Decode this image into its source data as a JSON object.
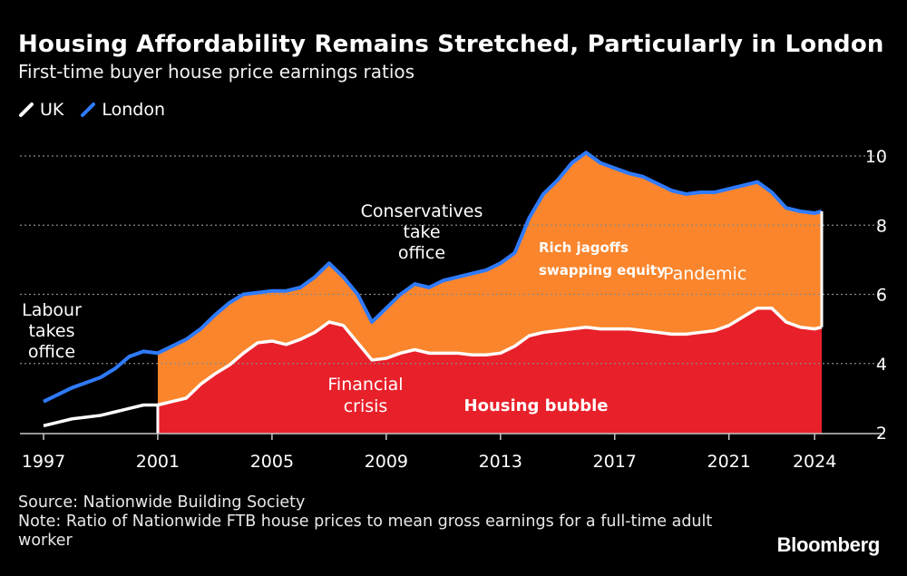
{
  "header": {
    "title": "Housing Affordability Remains Stretched, Particularly in London",
    "subtitle": "First-time buyer house price earnings ratios"
  },
  "legend": {
    "items": [
      {
        "label": "UK",
        "color": "#ffffff",
        "icon": "slash-line-icon"
      },
      {
        "label": "London",
        "color": "#2f7bff",
        "icon": "slash-line-icon"
      }
    ]
  },
  "colors": {
    "uk_fill": "#e8202a",
    "gap_fill": "#fa852c",
    "uk_line": "#ffffff",
    "london_line": "#2f7bff",
    "grid": "#8a8a8a"
  },
  "annotations": {
    "labour": [
      "Labour",
      "takes",
      "office"
    ],
    "conservatives": [
      "Conservatives",
      "take",
      "office"
    ],
    "financial_crisis": [
      "Financial",
      "crisis"
    ],
    "housing_bubble": "Housing bubble",
    "rich": [
      "Rich jagoffs",
      "swapping equity"
    ],
    "pandemic": "Pandemic"
  },
  "footer": {
    "source": "Source: Nationwide Building Society",
    "note": "Note: Ratio of Nationwide FTB house prices to mean gross earnings for a full-time adult worker"
  },
  "brand": "Bloomberg",
  "chart_data": {
    "type": "area",
    "title": "Housing Affordability Remains Stretched, Particularly in London",
    "subtitle": "First-time buyer house price earnings ratios",
    "xlabel": "",
    "ylabel": "",
    "xlim": [
      1997,
      2025.8
    ],
    "ylim": [
      1.8,
      10.4
    ],
    "x_ticks": [
      1997,
      2001,
      2005,
      2009,
      2013,
      2017,
      2021,
      2024
    ],
    "y_ticks": [
      2,
      4,
      6,
      8,
      10
    ],
    "grid": "horizontal dotted",
    "shade_start": 2001,
    "series": [
      {
        "name": "UK",
        "x": [
          1997,
          1997.5,
          1998,
          1998.5,
          1999,
          1999.5,
          2000,
          2000.5,
          2001,
          2001.5,
          2002,
          2002.5,
          2003,
          2003.5,
          2004,
          2004.5,
          2005,
          2005.5,
          2006,
          2006.5,
          2007,
          2007.5,
          2008,
          2008.5,
          2009,
          2009.5,
          2010,
          2010.5,
          2011,
          2011.5,
          2012,
          2012.5,
          2013,
          2013.5,
          2014,
          2014.5,
          2015,
          2015.5,
          2016,
          2016.5,
          2017,
          2017.5,
          2018,
          2018.5,
          2019,
          2019.5,
          2020,
          2020.5,
          2021,
          2021.5,
          2022,
          2022.5,
          2023,
          2023.5,
          2024,
          2024.25
        ],
        "values": [
          2.2,
          2.3,
          2.4,
          2.45,
          2.5,
          2.6,
          2.7,
          2.8,
          2.8,
          2.9,
          3.0,
          3.4,
          3.7,
          3.95,
          4.3,
          4.6,
          4.65,
          4.55,
          4.7,
          4.9,
          5.2,
          5.1,
          4.6,
          4.1,
          4.15,
          4.3,
          4.4,
          4.3,
          4.3,
          4.3,
          4.25,
          4.25,
          4.3,
          4.5,
          4.8,
          4.9,
          4.95,
          5.0,
          5.05,
          5.0,
          5.0,
          5.0,
          4.95,
          4.9,
          4.85,
          4.85,
          4.9,
          4.95,
          5.1,
          5.35,
          5.6,
          5.6,
          5.2,
          5.05,
          5.0,
          5.05
        ]
      },
      {
        "name": "London",
        "x": [
          1997,
          1997.5,
          1998,
          1998.5,
          1999,
          1999.5,
          2000,
          2000.5,
          2001,
          2001.5,
          2002,
          2002.5,
          2003,
          2003.5,
          2004,
          2004.5,
          2005,
          2005.5,
          2006,
          2006.5,
          2007,
          2007.5,
          2008,
          2008.5,
          2009,
          2009.5,
          2010,
          2010.5,
          2011,
          2011.5,
          2012,
          2012.5,
          2013,
          2013.5,
          2014,
          2014.5,
          2015,
          2015.5,
          2016,
          2016.5,
          2017,
          2017.5,
          2018,
          2018.5,
          2019,
          2019.5,
          2020,
          2020.5,
          2021,
          2021.5,
          2022,
          2022.5,
          2023,
          2023.5,
          2024,
          2024.25
        ],
        "values": [
          2.9,
          3.1,
          3.3,
          3.45,
          3.6,
          3.85,
          4.2,
          4.35,
          4.3,
          4.5,
          4.7,
          5.0,
          5.4,
          5.75,
          6.0,
          6.05,
          6.1,
          6.1,
          6.2,
          6.5,
          6.9,
          6.5,
          6.0,
          5.2,
          5.6,
          6.0,
          6.3,
          6.2,
          6.4,
          6.5,
          6.6,
          6.7,
          6.9,
          7.2,
          8.2,
          8.9,
          9.3,
          9.8,
          10.1,
          9.8,
          9.65,
          9.5,
          9.4,
          9.2,
          9.0,
          8.9,
          8.95,
          8.95,
          9.05,
          9.15,
          9.25,
          8.95,
          8.5,
          8.4,
          8.35,
          8.4
        ]
      }
    ],
    "annotations": [
      {
        "text": "Labour takes office",
        "x": 2001
      },
      {
        "text": "Conservatives take office",
        "x": 2010.35
      },
      {
        "text": "Financial crisis",
        "x": 2008.7
      },
      {
        "text": "Housing bubble",
        "x": 2016
      },
      {
        "text": "Rich jagoffs swapping equity",
        "x": 2017
      },
      {
        "text": "Pandemic",
        "x": 2020.25
      }
    ]
  }
}
